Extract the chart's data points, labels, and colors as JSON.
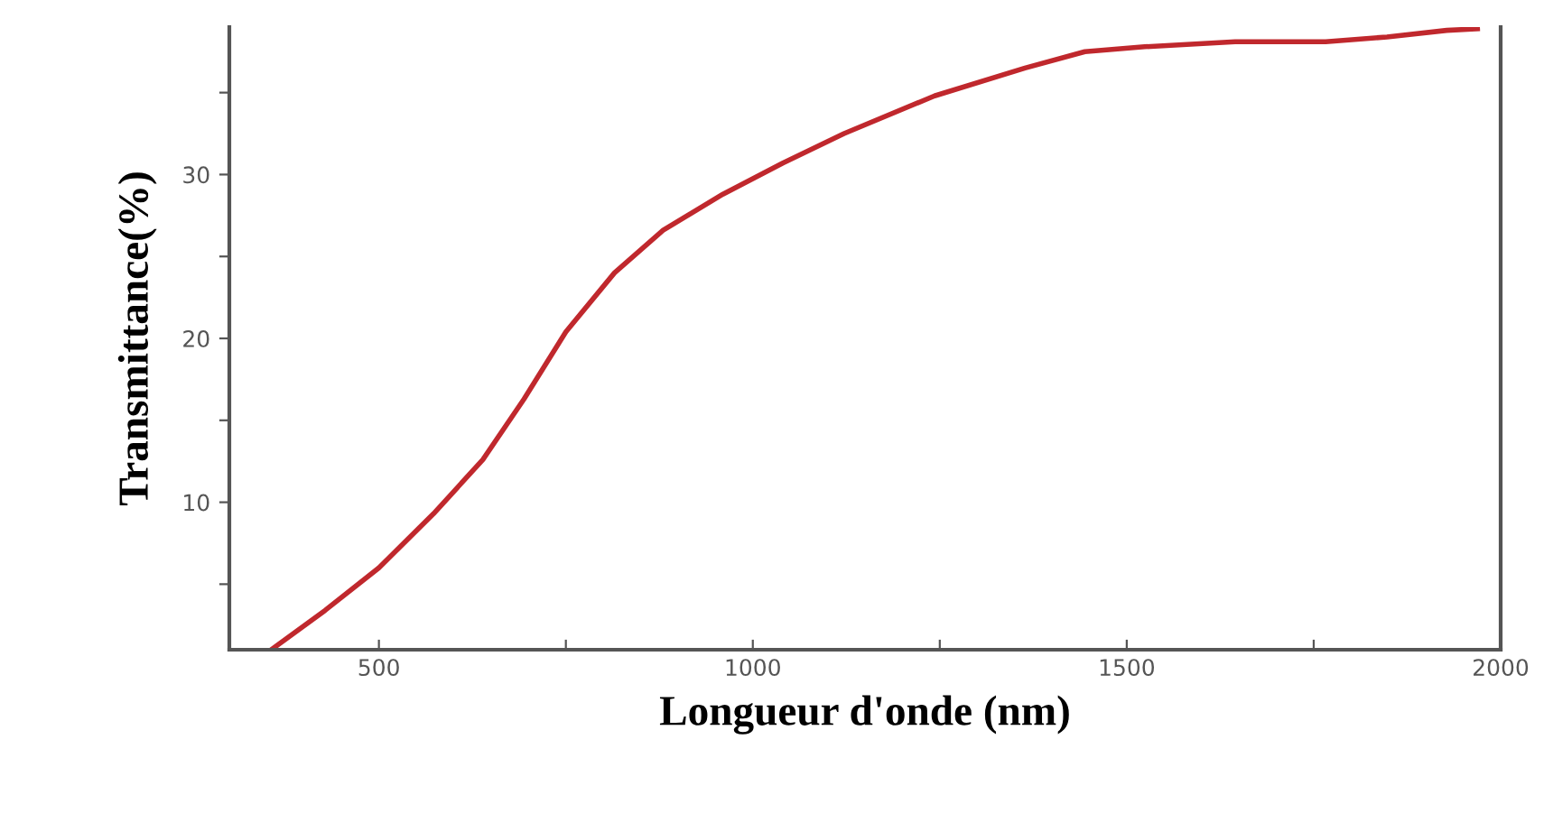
{
  "chart_data": {
    "type": "line",
    "xlabel": "Longueur d'onde (nm)",
    "ylabel": "Transmittance(%)",
    "xlim": [
      300,
      2000
    ],
    "ylim": [
      1,
      39
    ],
    "xticks": [
      500,
      {
        "value": 750,
        "label": null
      },
      1000,
      {
        "value": 1250,
        "label": null
      },
      1500,
      {
        "value": 1750,
        "label": null
      },
      2000
    ],
    "yticks": [
      {
        "value": 5,
        "label": null
      },
      10,
      {
        "value": 15,
        "label": null
      },
      20,
      {
        "value": 25,
        "label": null
      },
      30,
      {
        "value": 35,
        "label": null
      }
    ],
    "grid": false,
    "legend": false,
    "marker": "none",
    "line_style": "solid",
    "series": [
      {
        "color": "#c0282d",
        "x": [
          356,
          428,
          500,
          573,
          639,
          694,
          750,
          815,
          880,
          960,
          1040,
          1122,
          1243,
          1364,
          1444,
          1524,
          1645,
          1766,
          1848,
          1928,
          1969
        ],
        "values": [
          1.0,
          3.4,
          6.0,
          9.3,
          12.6,
          16.3,
          20.4,
          24.0,
          26.6,
          28.8,
          30.7,
          32.5,
          34.8,
          36.5,
          37.5,
          37.8,
          38.1,
          38.1,
          38.4,
          38.8,
          38.9
        ]
      }
    ]
  }
}
